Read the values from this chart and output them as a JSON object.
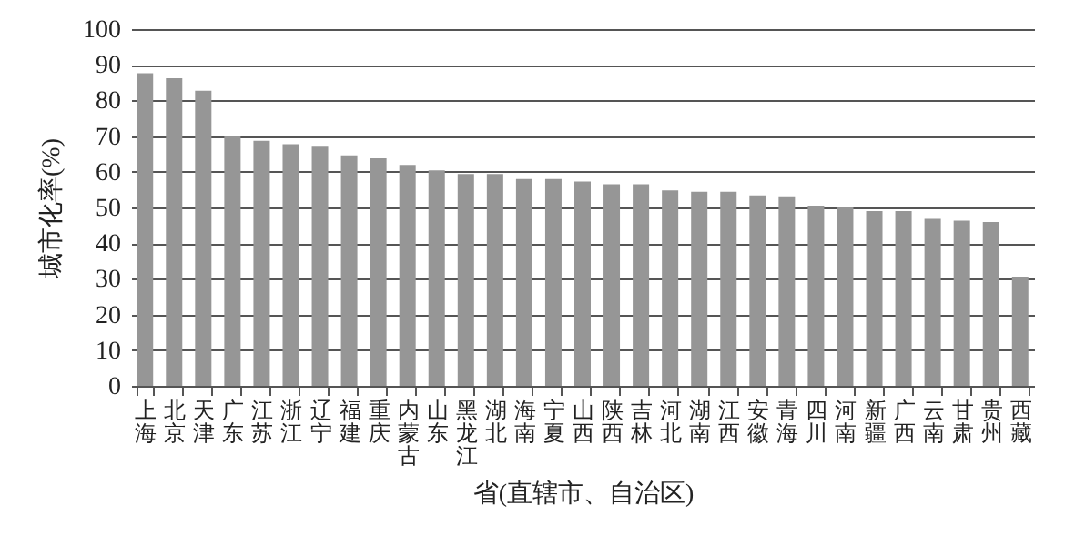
{
  "chart_data": {
    "type": "bar",
    "xlabel": "省(直辖市、自治区)",
    "ylabel": "城市化率(%)",
    "categories": [
      "上海",
      "北京",
      "天津",
      "广东",
      "江苏",
      "浙江",
      "辽宁",
      "福建",
      "重庆",
      "内蒙古",
      "山东",
      "黑龙江",
      "湖北",
      "海南",
      "宁夏",
      "山西",
      "陕西",
      "吉林",
      "河北",
      "湖南",
      "江西",
      "安徽",
      "青海",
      "四川",
      "河南",
      "新疆",
      "广西",
      "云南",
      "甘肃",
      "贵州",
      "西藏"
    ],
    "values": [
      87.6,
      86.2,
      82.7,
      69.9,
      68.7,
      67.7,
      67.3,
      64.6,
      63.8,
      61.9,
      60.4,
      59.4,
      59.4,
      58.0,
      58.0,
      57.3,
      56.5,
      56.5,
      54.8,
      54.4,
      54.4,
      53.4,
      53.1,
      50.5,
      50.0,
      49.0,
      49.0,
      46.8,
      46.3,
      45.9,
      30.6
    ],
    "color": "#969696",
    "ylim": [
      0,
      100
    ],
    "yticks": [
      0,
      10,
      20,
      30,
      40,
      50,
      60,
      70,
      80,
      90,
      100
    ],
    "grid": "y"
  }
}
